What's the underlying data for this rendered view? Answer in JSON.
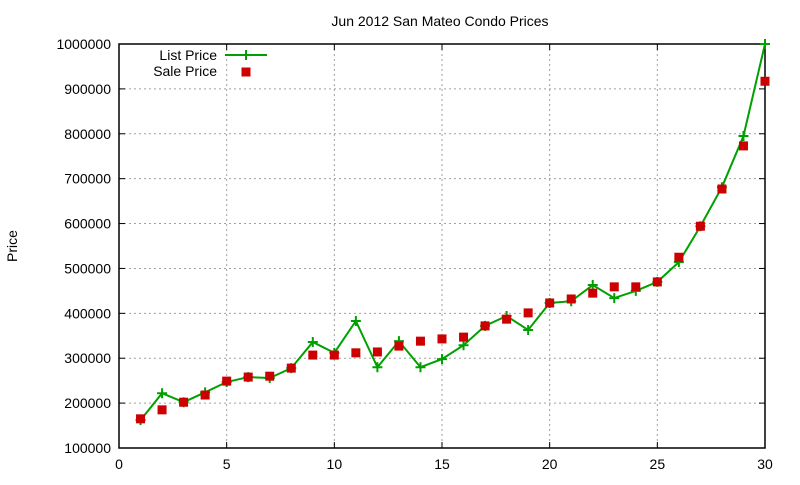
{
  "chart_data": {
    "type": "line",
    "title": "Jun 2012 San Mateo Condo Prices",
    "xlabel": "",
    "ylabel": "Price",
    "xlim": [
      0,
      30
    ],
    "ylim": [
      100000,
      1000000
    ],
    "xticks": [
      0,
      5,
      10,
      15,
      20,
      25,
      30
    ],
    "yticks": [
      100000,
      200000,
      300000,
      400000,
      500000,
      600000,
      700000,
      800000,
      900000,
      1000000
    ],
    "grid": true,
    "legend_position": "top-left",
    "x": [
      1,
      2,
      3,
      4,
      5,
      6,
      7,
      8,
      9,
      10,
      11,
      12,
      13,
      14,
      15,
      16,
      17,
      18,
      19,
      20,
      21,
      22,
      23,
      24,
      25,
      26,
      27,
      28,
      29,
      30
    ],
    "series": [
      {
        "name": "List Price",
        "style": "linespoints",
        "color": "#00a000",
        "values": [
          162000,
          222000,
          202000,
          224000,
          247000,
          258000,
          256000,
          278000,
          336000,
          312000,
          383000,
          280000,
          338000,
          280000,
          298000,
          329000,
          372000,
          394000,
          363000,
          423000,
          427000,
          463000,
          434000,
          450000,
          470000,
          514000,
          594000,
          681000,
          795000,
          1000000
        ]
      },
      {
        "name": "Sale Price",
        "style": "points",
        "color": "#cc0000",
        "values": [
          165000,
          185000,
          202000,
          218000,
          249000,
          258000,
          260000,
          278000,
          307000,
          307000,
          312000,
          314000,
          327000,
          338000,
          343000,
          347000,
          372000,
          387000,
          401000,
          423000,
          432000,
          445000,
          459000,
          459000,
          470000,
          525000,
          594000,
          677000,
          773000,
          917000
        ]
      }
    ]
  }
}
